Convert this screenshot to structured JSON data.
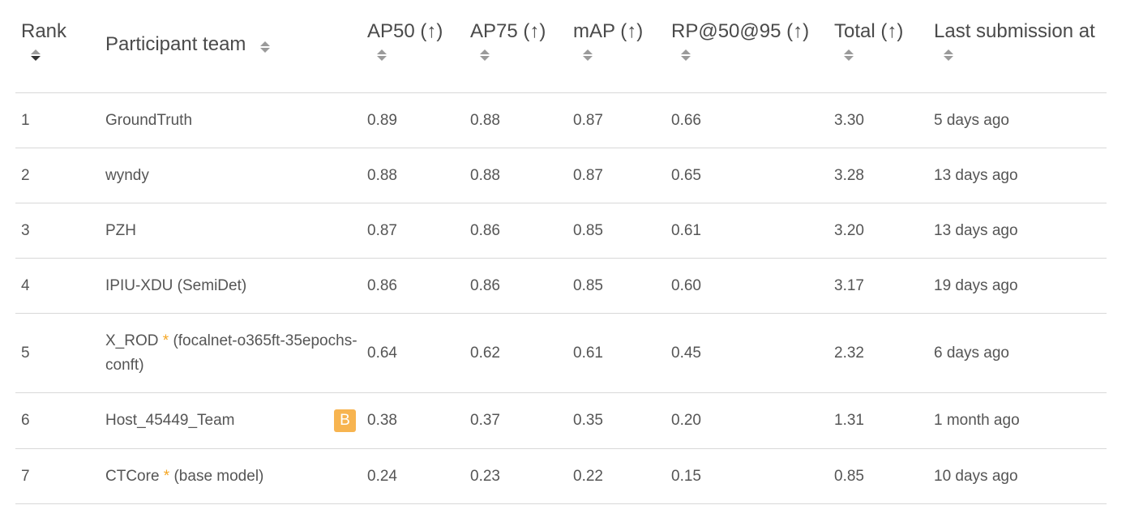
{
  "columns": {
    "rank": "Rank",
    "team": "Participant team",
    "ap50": "AP50 (↑)",
    "ap75": "AP75 (↑)",
    "map": "mAP (↑)",
    "rp": "RP@50@95 (↑)",
    "total": "Total (↑)",
    "last": "Last submission at"
  },
  "rows": [
    {
      "rank": "1",
      "team": "GroundTruth",
      "ap50": "0.89",
      "ap75": "0.88",
      "map": "0.87",
      "rp": "0.66",
      "total": "3.30",
      "last": "5 days ago"
    },
    {
      "rank": "2",
      "team": "wyndy",
      "ap50": "0.88",
      "ap75": "0.88",
      "map": "0.87",
      "rp": "0.65",
      "total": "3.28",
      "last": "13 days ago"
    },
    {
      "rank": "3",
      "team": "PZH",
      "ap50": "0.87",
      "ap75": "0.86",
      "map": "0.85",
      "rp": "0.61",
      "total": "3.20",
      "last": "13 days ago"
    },
    {
      "rank": "4",
      "team": "IPIU-XDU (SemiDet)",
      "ap50": "0.86",
      "ap75": "0.86",
      "map": "0.85",
      "rp": "0.60",
      "total": "3.17",
      "last": "19 days ago"
    },
    {
      "rank": "5",
      "team": "X_ROD",
      "team_star": "*",
      "team_note": "(focalnet-o365ft-35epochs-conft)",
      "ap50": "0.64",
      "ap75": "0.62",
      "map": "0.61",
      "rp": "0.45",
      "total": "2.32",
      "last": "6 days ago"
    },
    {
      "rank": "6",
      "team": "Host_45449_Team",
      "badge": "B",
      "ap50": "0.38",
      "ap75": "0.37",
      "map": "0.35",
      "rp": "0.20",
      "total": "1.31",
      "last": "1 month ago"
    },
    {
      "rank": "7",
      "team": "CTCore",
      "team_star": "*",
      "team_note": "(base model)",
      "ap50": "0.24",
      "ap75": "0.23",
      "map": "0.22",
      "rp": "0.15",
      "total": "0.85",
      "last": "10 days ago"
    }
  ],
  "colors": {
    "text": "#4a4a4a",
    "star": "#f5a623",
    "badge_bg": "#f7b450",
    "row_border": "#d8d8d8"
  },
  "icons": {
    "sort": "sort-icon",
    "sort_active": "sort-desc-icon"
  }
}
